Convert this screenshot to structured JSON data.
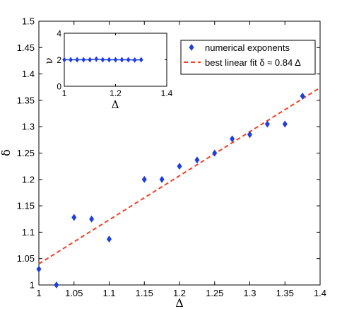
{
  "chart_data": [
    {
      "type": "scatter",
      "xlabel": "Δ",
      "ylabel": "δ",
      "xlim": [
        1,
        1.4
      ],
      "ylim": [
        1,
        1.5
      ],
      "xticks": [
        "1",
        "1.05",
        "1.1",
        "1.15",
        "1.2",
        "1.25",
        "1.3",
        "1.35",
        "1.4"
      ],
      "yticks": [
        "1",
        "1.05",
        "1.1",
        "1.15",
        "1.2",
        "1.25",
        "1.3",
        "1.35",
        "1.4",
        "1.45",
        "1.5"
      ],
      "series": [
        {
          "name": "numerical exponents",
          "marker": "diamond",
          "color": "#1f3ee0",
          "x": [
            1.0,
            1.025,
            1.05,
            1.075,
            1.1,
            1.15,
            1.175,
            1.2,
            1.225,
            1.25,
            1.275,
            1.3,
            1.325,
            1.35,
            1.375
          ],
          "y": [
            1.03,
            1.0,
            1.128,
            1.125,
            1.087,
            1.2,
            1.2,
            1.225,
            1.237,
            1.25,
            1.277,
            1.285,
            1.305,
            1.305,
            1.358
          ]
        },
        {
          "name": "best linear fit δ ≈ 0.84 Δ",
          "style": "dashed-line",
          "color": "#ff3b1f",
          "x": [
            1.0,
            1.4
          ],
          "y": [
            1.04,
            1.374
          ]
        }
      ],
      "legend_position": "top-right",
      "grid": false
    },
    {
      "type": "line",
      "role": "inset",
      "xlabel": "Δ",
      "ylabel": "ν",
      "xlim": [
        1,
        1.4
      ],
      "ylim": [
        0,
        4
      ],
      "xticks": [
        "1",
        "1.2",
        "1.4"
      ],
      "yticks": [
        "0",
        "2",
        "4"
      ],
      "series": [
        {
          "marker": "diamond",
          "color": "#1f3ee0",
          "x": [
            1.0,
            1.025,
            1.05,
            1.075,
            1.1,
            1.125,
            1.15,
            1.175,
            1.2,
            1.225,
            1.25,
            1.275,
            1.3
          ],
          "y": [
            2.0,
            2.0,
            2.0,
            2.0,
            2.0,
            2.05,
            2.0,
            2.0,
            2.0,
            2.0,
            2.0,
            1.98,
            2.0
          ]
        }
      ]
    }
  ]
}
